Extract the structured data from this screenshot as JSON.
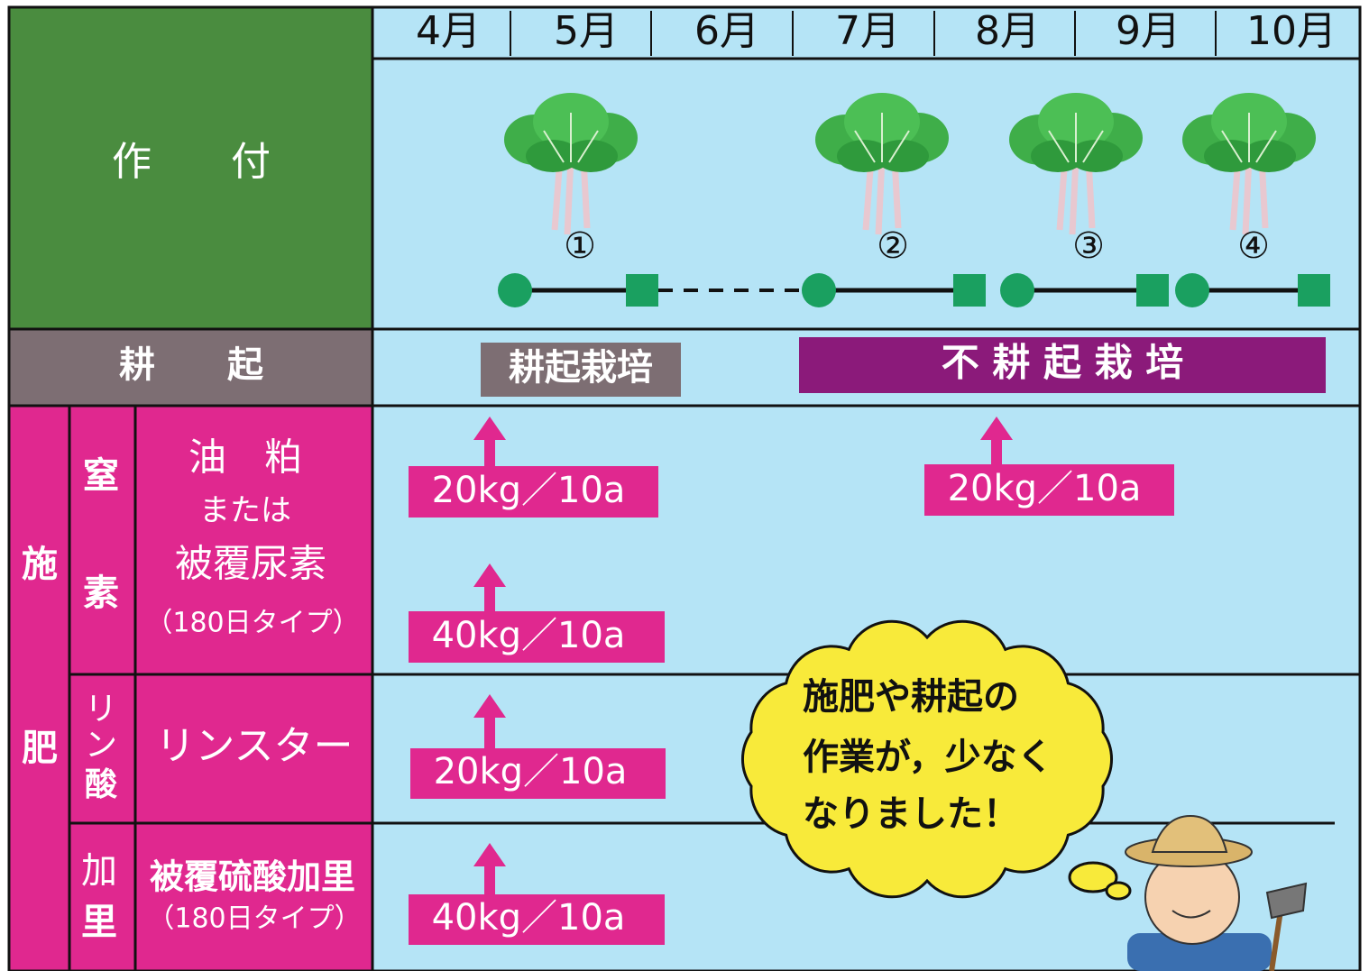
{
  "header": {
    "cropping": "作　　付",
    "tillage": "耕　　起"
  },
  "months": [
    "4月",
    "5月",
    "6月",
    "7月",
    "8月",
    "9月",
    "10月"
  ],
  "crops": [
    "①",
    "②",
    "③",
    "④"
  ],
  "tillage": {
    "tilled": "耕起栽培",
    "no_till": "不 耕 起 栽 培"
  },
  "fertilizer": {
    "label": [
      "施",
      "肥"
    ],
    "nitrogen": {
      "group": [
        "窒",
        "素"
      ],
      "material": [
        "油　粕",
        "または",
        "被覆尿素",
        "（180日タイプ）"
      ],
      "tilled": [
        "20kg／10a",
        "40kg／10a"
      ],
      "no_till": "20kg／10a"
    },
    "phosphate": {
      "group": [
        "リ",
        "ン",
        "酸"
      ],
      "material": "リンスター",
      "tilled": "20kg／10a"
    },
    "potassium": {
      "group": [
        "加",
        "里"
      ],
      "material": [
        "被覆硫酸加里",
        "（180日タイプ）"
      ],
      "tilled": "40kg／10a"
    }
  },
  "speech": [
    "施肥や耕起の",
    "作業が，少なく",
    "なりました！"
  ]
}
